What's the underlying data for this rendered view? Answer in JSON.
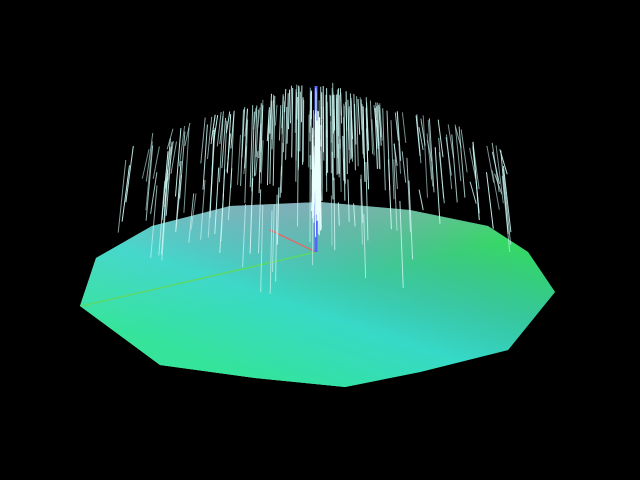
{
  "scene": {
    "background_color": "#000000",
    "platform": {
      "shape": "decagon",
      "gradient_colors": {
        "left": "#9fdc8a",
        "back": "#a9a4cc",
        "right": "#4a80e6",
        "front_left": "#2fea52",
        "front_right": "#35e6e0"
      }
    },
    "axes": {
      "x_color": "#e05a5a",
      "y_color": "#5566ff",
      "z_color": "#55dd55"
    },
    "fountain": {
      "particle_color": "#c8f4f0",
      "particle_count_visible": 260
    }
  }
}
